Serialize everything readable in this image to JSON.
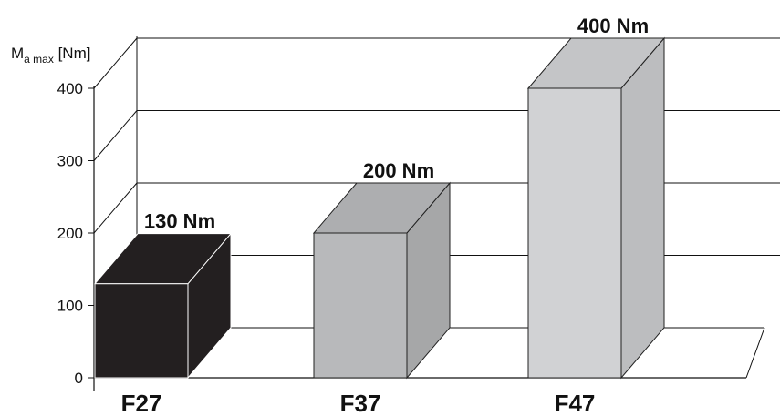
{
  "chart_data": {
    "type": "bar",
    "style": "3d",
    "ylabel_main": "M",
    "ylabel_sub": "a max",
    "ylabel_unit": " [Nm]",
    "ylim": [
      0,
      400
    ],
    "yticks": [
      "0",
      "100",
      "200",
      "300",
      "400"
    ],
    "categories": [
      "F27",
      "F37",
      "F47"
    ],
    "values": [
      130,
      200,
      400
    ],
    "data_labels": [
      "130 Nm",
      "200 Nm",
      "400 Nm"
    ],
    "colors": [
      "#231f20",
      "#b8b9bb",
      "#d1d2d4"
    ],
    "grid": true
  }
}
